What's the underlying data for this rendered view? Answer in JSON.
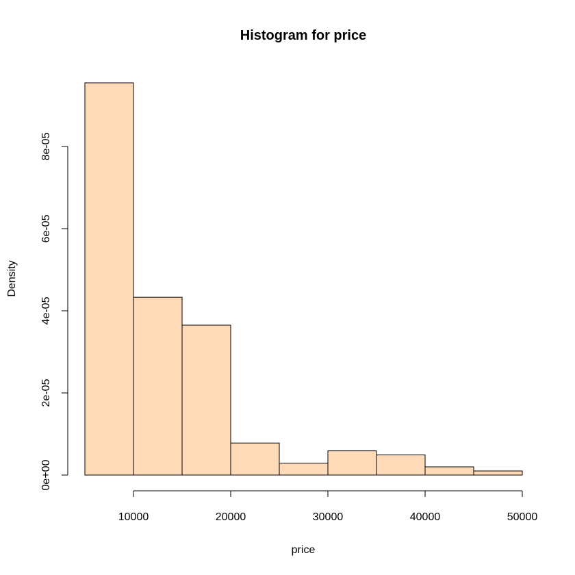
{
  "chart_data": {
    "type": "bar",
    "title": "Histogram for price",
    "xlabel": "price",
    "ylabel": "Density",
    "bins": [
      {
        "from": 5000,
        "to": 10000,
        "value": 9.55e-05
      },
      {
        "from": 10000,
        "to": 15000,
        "value": 4.33e-05
      },
      {
        "from": 15000,
        "to": 20000,
        "value": 3.65e-05
      },
      {
        "from": 20000,
        "to": 25000,
        "value": 7.8e-06
      },
      {
        "from": 25000,
        "to": 30000,
        "value": 2.9e-06
      },
      {
        "from": 30000,
        "to": 35000,
        "value": 5.9e-06
      },
      {
        "from": 35000,
        "to": 40000,
        "value": 4.9e-06
      },
      {
        "from": 40000,
        "to": 45000,
        "value": 2e-06
      },
      {
        "from": 45000,
        "to": 50000,
        "value": 1e-06
      }
    ],
    "xlim": [
      5000,
      50000
    ],
    "ylim": [
      0,
      9.55e-05
    ],
    "xticks": [
      {
        "value": 10000,
        "label": "10000"
      },
      {
        "value": 20000,
        "label": "20000"
      },
      {
        "value": 30000,
        "label": "30000"
      },
      {
        "value": 40000,
        "label": "40000"
      },
      {
        "value": 50000,
        "label": "50000"
      }
    ],
    "yticks": [
      {
        "value": 0,
        "label": "0e+00"
      },
      {
        "value": 2e-05,
        "label": "2e-05"
      },
      {
        "value": 4e-05,
        "label": "4e-05"
      },
      {
        "value": 6e-05,
        "label": "6e-05"
      },
      {
        "value": 8e-05,
        "label": "8e-05"
      }
    ],
    "grid": false,
    "legend": "none",
    "bar_color": "#FFDAB9",
    "bar_border_color": "#000000"
  }
}
